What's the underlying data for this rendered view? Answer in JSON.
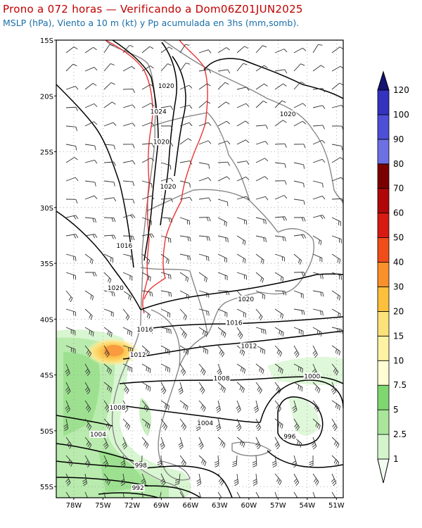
{
  "title": "Prono a 072 horas — Verificando a Dom06Z01JUN2025",
  "subtitle": "MSLP (hPa), Viento a 10 m (kt) y Pp acumulada en 3hs (mm,somb).",
  "map": {
    "lat_labels": [
      "15S",
      "20S",
      "25S",
      "30S",
      "35S",
      "40S",
      "45S",
      "50S",
      "55S"
    ],
    "lon_labels": [
      "78W",
      "75W",
      "72W",
      "69W",
      "66W",
      "63W",
      "60W",
      "57W",
      "54W",
      "51W"
    ],
    "isobar_labels": [
      {
        "text": "1020",
        "lon": -68.5,
        "lat": -19.3
      },
      {
        "text": "1024",
        "lon": -69.3,
        "lat": -21.6
      },
      {
        "text": "1020",
        "lon": -69.0,
        "lat": -24.3
      },
      {
        "text": "1020",
        "lon": -68.3,
        "lat": -28.3
      },
      {
        "text": "1020",
        "lon": -56.0,
        "lat": -21.8
      },
      {
        "text": "1016",
        "lon": -72.8,
        "lat": -33.6
      },
      {
        "text": "1020",
        "lon": -73.7,
        "lat": -37.4
      },
      {
        "text": "1020",
        "lon": -60.3,
        "lat": -38.4
      },
      {
        "text": "1016",
        "lon": -61.5,
        "lat": -40.5
      },
      {
        "text": "1016",
        "lon": -70.7,
        "lat": -41.1
      },
      {
        "text": "1012",
        "lon": -60.0,
        "lat": -42.6
      },
      {
        "text": "1012",
        "lon": -71.4,
        "lat": -43.4
      },
      {
        "text": "1008",
        "lon": -62.8,
        "lat": -45.5
      },
      {
        "text": "1008",
        "lon": -73.5,
        "lat": -48.1
      },
      {
        "text": "1004",
        "lon": -64.5,
        "lat": -49.5
      },
      {
        "text": "1004",
        "lon": -75.5,
        "lat": -50.5
      },
      {
        "text": "1000",
        "lon": -53.5,
        "lat": -45.3
      },
      {
        "text": "996",
        "lon": -55.8,
        "lat": -50.7
      },
      {
        "text": "998",
        "lon": -71.1,
        "lat": -53.3
      },
      {
        "text": "992",
        "lon": -71.4,
        "lat": -55.3
      }
    ]
  },
  "colorbar": {
    "labels": [
      "1",
      "2.5",
      "5",
      "7.5",
      "10",
      "15",
      "20",
      "30",
      "40",
      "50",
      "60",
      "70",
      "80",
      "90",
      "100",
      "120"
    ],
    "colors": [
      "#f2fcf0",
      "#d4f5cc",
      "#a9e69c",
      "#7fd76f",
      "#fffdd4",
      "#fdf3a3",
      "#fde27a",
      "#fcc03c",
      "#f9902a",
      "#f04d18",
      "#d91a12",
      "#b00808",
      "#7a0000",
      "#6d70e3",
      "#4d4fd6",
      "#3333c0",
      "#22229e",
      "#141472"
    ]
  },
  "colors": {
    "title": "#c00000",
    "subtitle": "#1a6ea8",
    "isobar": "#000000",
    "isobar_red": "#ee3333",
    "border": "#888888"
  }
}
